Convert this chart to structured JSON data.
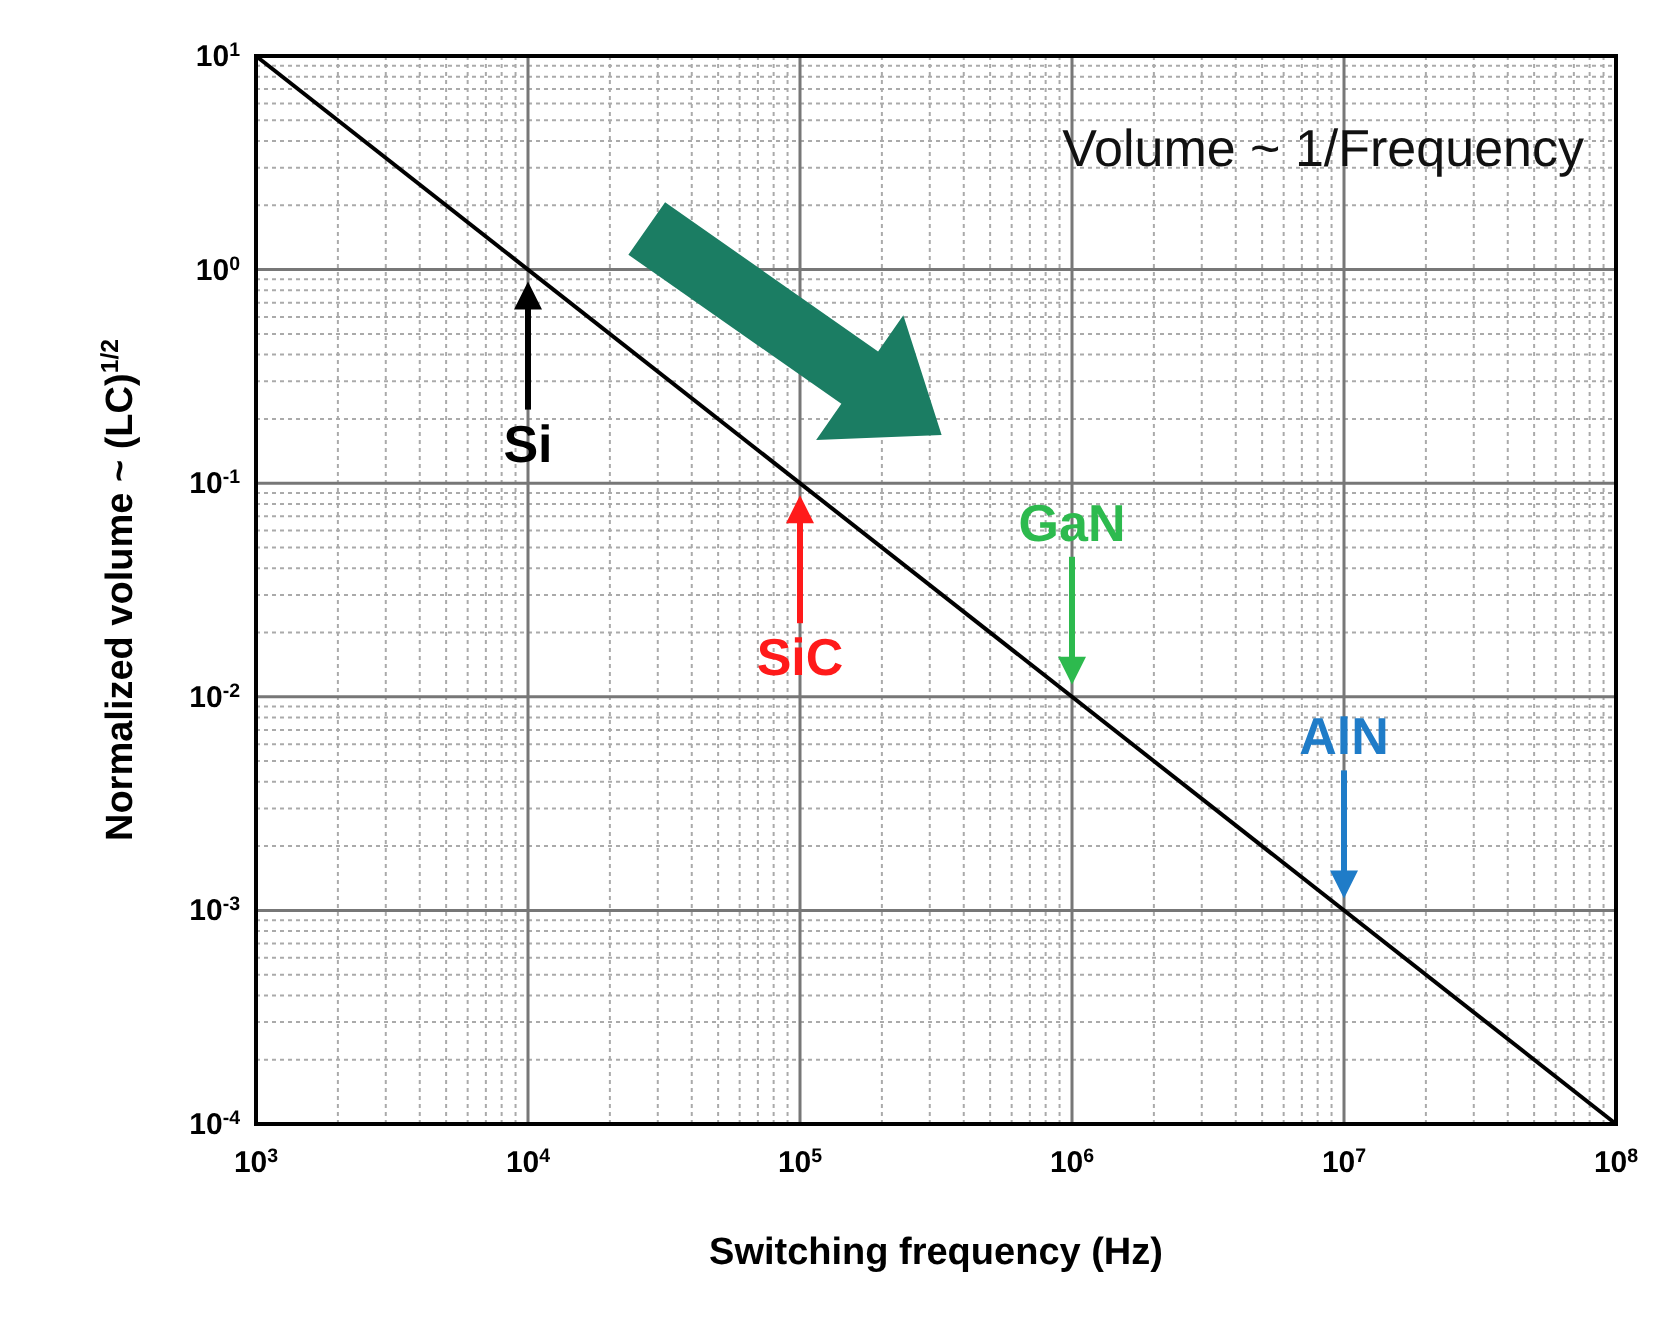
{
  "chart_data": {
    "type": "line",
    "xlabel": "Switching frequency (Hz)",
    "ylabel": "Normalized volume ~ (LC)$^{1/2}$",
    "log": "xy",
    "grid": true,
    "xlim": [
      1000,
      100000000
    ],
    "ylim": [
      0.0001,
      10
    ],
    "xticks": [
      {
        "value": 1000,
        "label": "10$^{3}$"
      },
      {
        "value": 10000,
        "label": "10$^{4}$"
      },
      {
        "value": 100000,
        "label": "10$^{5}$"
      },
      {
        "value": 1000000,
        "label": "10$^{6}$"
      },
      {
        "value": 10000000,
        "label": "10$^{7}$"
      },
      {
        "value": 100000000,
        "label": "10$^{8}$"
      }
    ],
    "yticks": [
      {
        "value": 0.0001,
        "label": "10$^{-4}$"
      },
      {
        "value": 0.001,
        "label": "10$^{-3}$"
      },
      {
        "value": 0.01,
        "label": "10$^{-2}$"
      },
      {
        "value": 0.1,
        "label": "10$^{-1}$"
      },
      {
        "value": 1,
        "label": "10$^{0}$"
      },
      {
        "value": 10,
        "label": "10$^{1}$"
      }
    ],
    "series": [
      {
        "color": "#000000",
        "x": [
          1000,
          100000000
        ],
        "values": [
          10,
          0.0001
        ]
      }
    ],
    "annotations": [
      "Volume ~ 1/Frequency",
      {
        "text": "Si",
        "x": 10000,
        "y": 1
      },
      {
        "text": "SiC",
        "x": 100000,
        "y": 0.1
      },
      {
        "text": "GaN",
        "x": 1000000,
        "y": 0.01
      },
      {
        "text": "AlN",
        "x": 10000000,
        "y": 0.001
      }
    ]
  }
}
